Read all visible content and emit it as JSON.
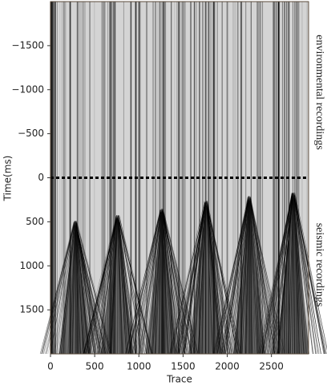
{
  "chart_data": {
    "type": "image",
    "x_label": "Trace",
    "y_label": "Time(ms)",
    "xlim": [
      0,
      2920
    ],
    "ylim": [
      -2000,
      2000
    ],
    "y_inverted": true,
    "xticks": [
      0,
      500,
      1000,
      1500,
      2000,
      2500
    ],
    "yticks": [
      {
        "value": -1500,
        "label": "−1500"
      },
      {
        "value": -1000,
        "label": "−1000"
      },
      {
        "value": -500,
        "label": "−500"
      },
      0,
      500,
      1000,
      1500
    ],
    "hline": 0,
    "annotations": [
      "environmental recordings",
      "seismic recordings"
    ]
  }
}
